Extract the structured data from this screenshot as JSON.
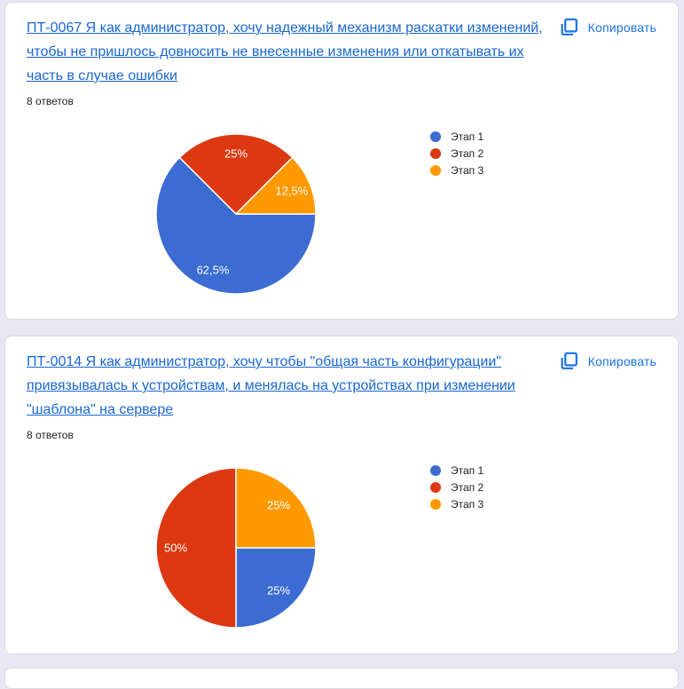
{
  "page": {
    "background_color": "#e8e7f3",
    "card_border_color": "#dadce0",
    "link_color": "#1967d2",
    "accent_color": "#1a73e8"
  },
  "cards": [
    {
      "title": "ПТ-0067 Я как администратор, хочу надежный механизм раскатки изменений, чтобы не пришлось довносить не внесенные изменения или откатывать их часть в случае ошибки",
      "responses_label": "8 ответов",
      "copy_button": {
        "label": "Копировать",
        "icon": "copy-icon"
      }
    },
    {
      "title": "ПТ-0014 Я как администратор, хочу чтобы \"общая часть конфигурации\" привязывалась к устройствам, и менялась на устройствах при изменении \"шаблона\" на сервере",
      "responses_label": "8 ответов",
      "copy_button": {
        "label": "Копировать",
        "icon": "copy-icon"
      }
    }
  ],
  "chart_data": [
    {
      "type": "pie",
      "labels": [
        "Этап 1",
        "Этап 2",
        "Этап 3"
      ],
      "values_percent": [
        62.5,
        25,
        12.5
      ],
      "slice_label_texts": [
        "62,5%",
        "25%",
        "12,5%"
      ],
      "colors": [
        "#3c6bd2",
        "#dc3912",
        "#ff9900"
      ],
      "legend_position": "right",
      "start_angle_deg": 0,
      "direction": "clockwise",
      "slice_border_color": "#ffffff",
      "slice_label_color": "#ffffff"
    },
    {
      "type": "pie",
      "labels": [
        "Этап 1",
        "Этап 2",
        "Этап 3"
      ],
      "values_percent": [
        25,
        50,
        25
      ],
      "slice_label_texts": [
        "25%",
        "50%",
        "25%"
      ],
      "colors": [
        "#3c6bd2",
        "#dc3912",
        "#ff9900"
      ],
      "legend_position": "right",
      "start_angle_deg": 0,
      "direction": "clockwise",
      "slice_border_color": "#ffffff",
      "slice_label_color": "#ffffff"
    }
  ]
}
